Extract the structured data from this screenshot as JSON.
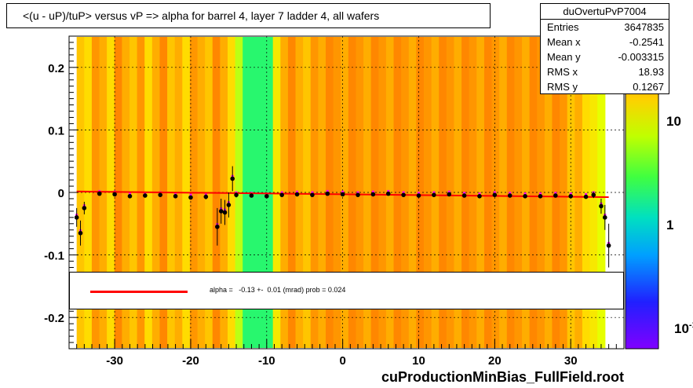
{
  "title": "<(u - uP)/tuP> versus   vP => alpha for barrel 4, layer 7 ladder 4, all wafers",
  "stats": {
    "name": "duOvertuPvP7004",
    "rows": [
      {
        "label": "Entries",
        "value": "3647835"
      },
      {
        "label": "Mean x",
        "value": "-0.2541"
      },
      {
        "label": "Mean y",
        "value": "-0.003315"
      },
      {
        "label": "RMS x",
        "value": "18.93"
      },
      {
        "label": "RMS y",
        "value": "0.1267"
      }
    ]
  },
  "fit_text": "alpha =   -0.13 +-  0.01 (mrad) prob = 0.024",
  "footer": "cuProductionMinBias_FullField.root",
  "colors": {
    "fit_line": "#ff0000",
    "profile_points": "#000000",
    "overlay_points": "#ff00ff"
  },
  "chart_data": {
    "type": "heatmap",
    "title": "<(u - uP)/tuP> versus   vP => alpha for barrel 4, layer 7 ladder 4, all wafers",
    "xlim": [
      -36,
      37
    ],
    "ylim": [
      -0.25,
      0.25
    ],
    "xticks": [
      -30,
      -20,
      -10,
      0,
      10,
      20,
      30
    ],
    "xtick_labels": [
      "-30",
      "-20",
      "-10",
      "0",
      "10",
      "20",
      "30"
    ],
    "yticks": [
      -0.2,
      -0.1,
      0,
      0.1,
      0.2
    ],
    "ytick_labels": [
      "-0.2",
      "-0.1",
      "0",
      "0.1",
      "0.2"
    ],
    "grid": true,
    "colorbar": {
      "scale": "log",
      "tick_labels": [
        "10",
        "1",
        "10^-1"
      ]
    },
    "heatmap_columns": {
      "x_range": [
        -35,
        34.5
      ],
      "intensity": [
        0.55,
        0.5,
        0.65,
        0.6,
        0.5,
        0.7,
        0.6,
        0.55,
        0.65,
        0.5,
        0.6,
        0.7,
        0.55,
        0.6,
        0.5,
        0.65,
        0.6,
        0.55,
        0.7,
        0.6,
        0.5,
        0.3,
        0.1,
        0.1,
        0.1,
        0.1,
        0.45,
        0.6,
        0.7,
        0.6,
        0.55,
        0.65,
        0.6,
        0.7,
        0.65,
        0.6,
        0.7,
        0.65,
        0.6,
        0.7,
        0.65,
        0.6,
        0.7,
        0.65,
        0.6,
        0.7,
        0.65,
        0.6,
        0.7,
        0.65,
        0.6,
        0.7,
        0.65,
        0.6,
        0.7,
        0.65,
        0.6,
        0.7,
        0.65,
        0.6,
        0.7,
        0.65,
        0.6,
        0.7,
        0.65,
        0.55,
        0.6,
        0.5,
        0.45,
        0.35
      ]
    },
    "profile": {
      "x": [
        -35,
        -34.5,
        -34,
        -32,
        -30,
        -28,
        -26,
        -24,
        -22,
        -20,
        -18,
        -16.5,
        -16,
        -15.5,
        -15,
        -14.5,
        -14,
        -12,
        -10,
        -8,
        -6,
        -4,
        -2,
        0,
        2,
        4,
        6,
        8,
        10,
        12,
        14,
        16,
        18,
        20,
        22,
        24,
        26,
        28,
        30,
        32,
        33,
        34,
        34.5,
        35
      ],
      "y": [
        -0.04,
        -0.065,
        -0.025,
        -0.002,
        -0.003,
        -0.006,
        -0.005,
        -0.004,
        -0.006,
        -0.008,
        -0.007,
        -0.055,
        -0.03,
        -0.032,
        -0.02,
        0.022,
        -0.004,
        -0.005,
        -0.006,
        -0.004,
        -0.003,
        -0.004,
        -0.002,
        -0.003,
        -0.004,
        -0.003,
        -0.002,
        -0.004,
        -0.005,
        -0.004,
        -0.003,
        -0.005,
        -0.006,
        -0.004,
        -0.005,
        -0.006,
        -0.006,
        -0.005,
        -0.006,
        -0.007,
        -0.004,
        -0.022,
        -0.04,
        -0.085
      ],
      "err": [
        0.015,
        0.02,
        0.01,
        0.003,
        0.003,
        0.003,
        0.003,
        0.003,
        0.003,
        0.003,
        0.004,
        0.03,
        0.02,
        0.02,
        0.02,
        0.02,
        0.004,
        0.003,
        0.003,
        0.003,
        0.003,
        0.003,
        0.003,
        0.003,
        0.003,
        0.003,
        0.003,
        0.003,
        0.003,
        0.003,
        0.003,
        0.003,
        0.003,
        0.003,
        0.003,
        0.003,
        0.003,
        0.003,
        0.003,
        0.003,
        0.005,
        0.012,
        0.02,
        0.035
      ]
    },
    "fit": {
      "slope_mrad": -0.13,
      "intercept": -0.003,
      "x_range": [
        -35,
        35
      ]
    }
  }
}
